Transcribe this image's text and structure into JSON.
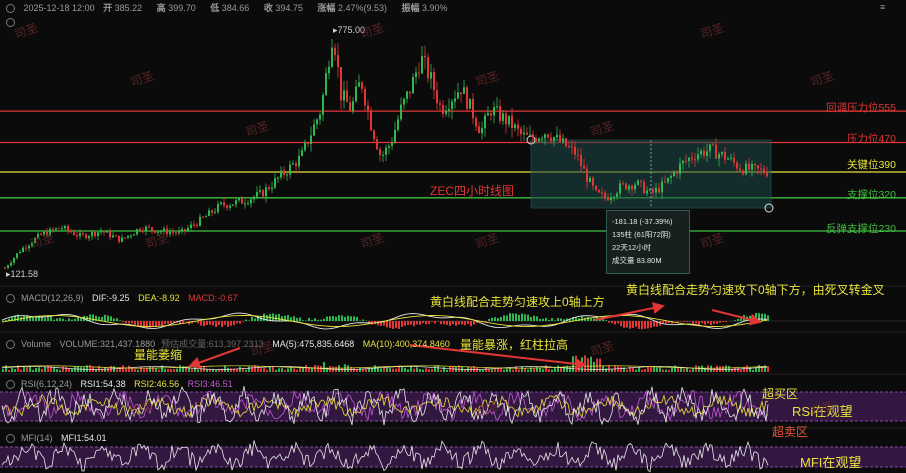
{
  "header": {
    "datetime": "2025-12-18 12:00",
    "open_label": "开",
    "open": "385.22",
    "high_label": "高",
    "high": "399.70",
    "low_label": "低",
    "low": "384.66",
    "close_label": "收",
    "close": "394.75",
    "change_label": "涨幅",
    "change": "2.47%(9.53)",
    "amplitude_label": "振幅",
    "amplitude": "3.90%"
  },
  "chart_title": "ZEC四小时线图",
  "price_high_label": "775.00",
  "price_low_label": "121.58",
  "levels": [
    {
      "label": "回调压力位555",
      "value": 555,
      "color": "#e23636"
    },
    {
      "label": "压力位470",
      "value": 470,
      "color": "#e23636"
    },
    {
      "label": "关键位390",
      "value": 390,
      "color": "#e8e33a"
    },
    {
      "label": "支撑位320",
      "value": 320,
      "color": "#3fbf3f"
    },
    {
      "label": "反弹支撑位230",
      "value": 230,
      "color": "#3fbf3f"
    }
  ],
  "measure_tooltip": {
    "line1": "-181.18 (-37.39%)",
    "line2": "135柱 (61阳72阴)",
    "line3": "22天12小时",
    "line4": "成交量 83.80M"
  },
  "macd": {
    "label": "MACD(12,26,9)",
    "dif": "DIF:-9.25",
    "dea": "DEA:-8.92",
    "macd": "MACD:-0.67"
  },
  "volume": {
    "label": "Volume",
    "volume_vals": "VOLUME:321,437.1880",
    "hidden_label": "预估成交量:613,397.2313",
    "ma5": "MA(5):475,835.6468",
    "ma10": "MA(10):400,374.8460"
  },
  "rsi": {
    "label": "RSI(6,12,24)",
    "rsi1": "RSI1:54.38",
    "rsi2": "RSI2:46.56",
    "rsi3": "RSI3:46.51"
  },
  "mfi": {
    "label": "MFI(14)",
    "mfi1": "MFI1:54.01"
  },
  "annotations": {
    "macd_left": "黄白线配合走势匀速攻上0轴上方",
    "macd_right": "黄白线配合走势匀速攻下0轴下方，由死叉转金叉",
    "vol_left": "量能萎缩",
    "vol_mid": "量能暴涨，红柱拉高",
    "rsi_overbought": "超买区",
    "rsi_in_view": "RSI在观望",
    "rsi_oversold": "超卖区",
    "mfi_in_view": "MFI在观望"
  },
  "watermark": "司圣",
  "colors": {
    "up": "#2fb84f",
    "down": "#e23636",
    "dif": "#e8e8e8",
    "dea": "#e8e33a",
    "rsi_band": "#3a1a4a"
  }
}
